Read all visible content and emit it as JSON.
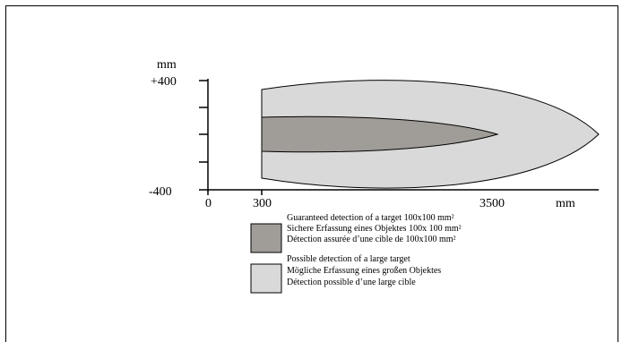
{
  "diagram": {
    "axis": {
      "y_unit": "mm",
      "y_top_label": "+400",
      "y_bottom_label": "-400",
      "x_unit": "mm",
      "x_labels": [
        "0",
        "300",
        "3500"
      ]
    },
    "zones": {
      "possible": {
        "color": "#d9d9d9",
        "x_start": 300,
        "x_end": 4550,
        "y_half": 400
      },
      "guaranteed": {
        "color": "#a09c97",
        "x_start": 300,
        "x_end": 3500,
        "y_half": 120
      }
    },
    "legend": {
      "guaranteed": {
        "lines": [
          "Guaranteed detection of a target 100x100 mm²",
          "Sichere Erfassung eines Objektes 100x 100 mm²",
          "Détection assurée d’une cible de 100x100 mm²"
        ],
        "color": "#a09c97"
      },
      "possible": {
        "lines": [
          "Possible detection of a large target",
          "Mögliche Erfassung eines großen Objektes",
          "Détection possible d’une large cible"
        ],
        "color": "#d9d9d9"
      }
    }
  }
}
